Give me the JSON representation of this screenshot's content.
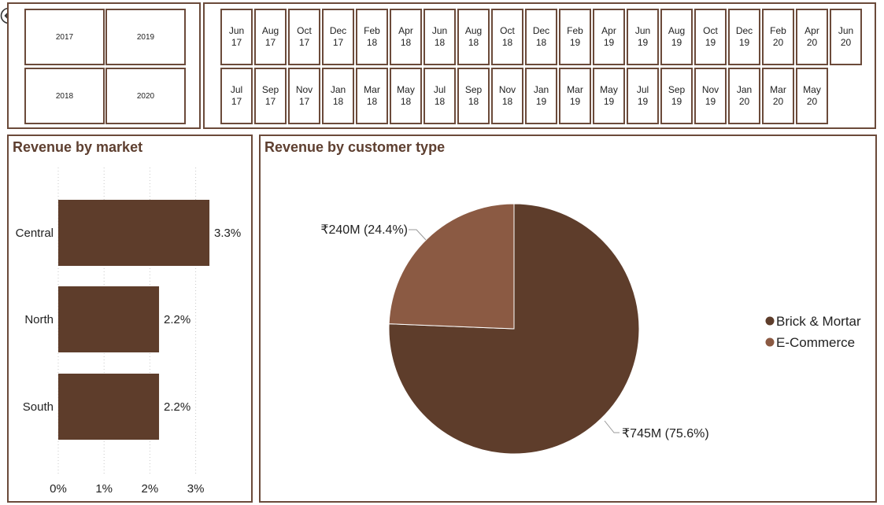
{
  "nav": {
    "back_icon": "back-arrow-icon"
  },
  "year_slicer": {
    "items": [
      "2017",
      "2019",
      "2018",
      "2020"
    ]
  },
  "month_slicer": {
    "row1": [
      [
        "Jun",
        "17"
      ],
      [
        "Aug",
        "17"
      ],
      [
        "Oct",
        "17"
      ],
      [
        "Dec",
        "17"
      ],
      [
        "Feb",
        "18"
      ],
      [
        "Apr",
        "18"
      ],
      [
        "Jun",
        "18"
      ],
      [
        "Aug",
        "18"
      ],
      [
        "Oct",
        "18"
      ],
      [
        "Dec",
        "18"
      ],
      [
        "Feb",
        "19"
      ],
      [
        "Apr",
        "19"
      ],
      [
        "Jun",
        "19"
      ],
      [
        "Aug",
        "19"
      ],
      [
        "Oct",
        "19"
      ],
      [
        "Dec",
        "19"
      ],
      [
        "Feb",
        "20"
      ],
      [
        "Apr",
        "20"
      ],
      [
        "Jun",
        "20"
      ]
    ],
    "row2": [
      [
        "Jul",
        "17"
      ],
      [
        "Sep",
        "17"
      ],
      [
        "Nov",
        "17"
      ],
      [
        "Jan",
        "18"
      ],
      [
        "Mar",
        "18"
      ],
      [
        "May",
        "18"
      ],
      [
        "Jul",
        "18"
      ],
      [
        "Sep",
        "18"
      ],
      [
        "Nov",
        "18"
      ],
      [
        "Jan",
        "19"
      ],
      [
        "Mar",
        "19"
      ],
      [
        "May",
        "19"
      ],
      [
        "Jul",
        "19"
      ],
      [
        "Sep",
        "19"
      ],
      [
        "Nov",
        "19"
      ],
      [
        "Jan",
        "20"
      ],
      [
        "Mar",
        "20"
      ],
      [
        "May",
        "20"
      ]
    ]
  },
  "colors": {
    "dark_brown": "#5e3d2b",
    "light_brown": "#8b5a43",
    "border": "#6b4a3a",
    "title": "#5e3f30"
  },
  "chart_data": [
    {
      "type": "bar",
      "orientation": "horizontal",
      "title": "Revenue by market",
      "categories": [
        "Central",
        "North",
        "South"
      ],
      "values": [
        3.3,
        2.2,
        2.2
      ],
      "data_labels": [
        "3.3%",
        "2.2%",
        "2.2%"
      ],
      "x_ticks": [
        "0%",
        "1%",
        "2%",
        "3%"
      ],
      "xlim": [
        0,
        3.5
      ],
      "grid": true
    },
    {
      "type": "pie",
      "title": "Revenue by customer type",
      "labels": [
        "Brick & Mortar",
        "E-Commerce"
      ],
      "values": [
        745,
        240
      ],
      "percents": [
        75.6,
        24.4
      ],
      "data_labels": [
        "₹745M (75.6%)",
        "₹240M (24.4%)"
      ],
      "legend": "right"
    }
  ]
}
